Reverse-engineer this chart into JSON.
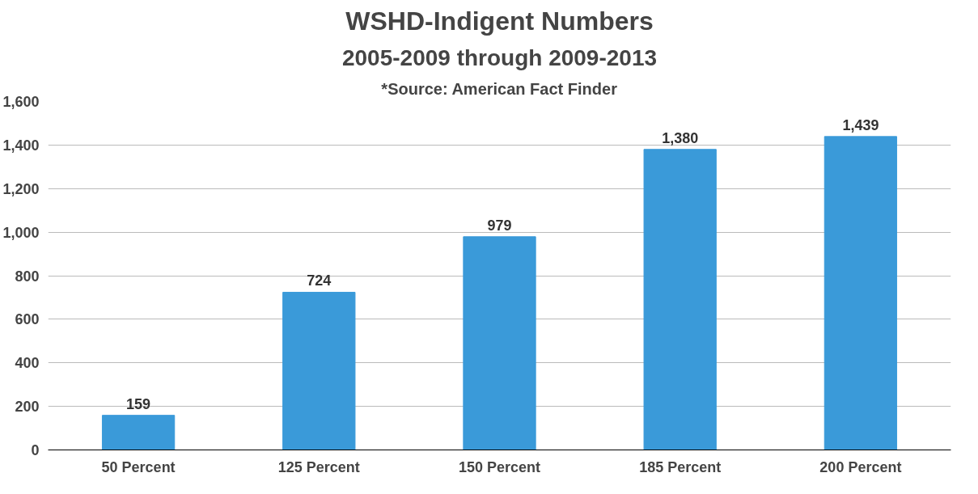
{
  "chart_data": {
    "type": "bar",
    "title": "WSHD-Indigent Numbers",
    "subtitle": "2005-2009 through 2009-2013",
    "annotations": [
      "*Source: American Fact Finder"
    ],
    "categories": [
      "50 Percent",
      "125 Percent",
      "150 Percent",
      "185 Percent",
      "200 Percent"
    ],
    "values": [
      159,
      724,
      979,
      1380,
      1439
    ],
    "color": "#3a9ad9",
    "ylim": [
      0,
      1600
    ],
    "yticks": [
      {
        "value": 0,
        "label": "0"
      },
      {
        "value": 200,
        "label": "200"
      },
      {
        "value": 400,
        "label": "400"
      },
      {
        "value": 600,
        "label": "600"
      },
      {
        "value": 800,
        "label": "800"
      },
      {
        "value": 1000,
        "label": "1,000"
      },
      {
        "value": 1200,
        "label": "1,200"
      },
      {
        "value": 1400,
        "label": "1,400"
      },
      {
        "value": 1600,
        "label": "1,600"
      }
    ],
    "grid": "y",
    "value_labels": [
      "159",
      "724",
      "979",
      "1,380",
      "1,439"
    ]
  }
}
